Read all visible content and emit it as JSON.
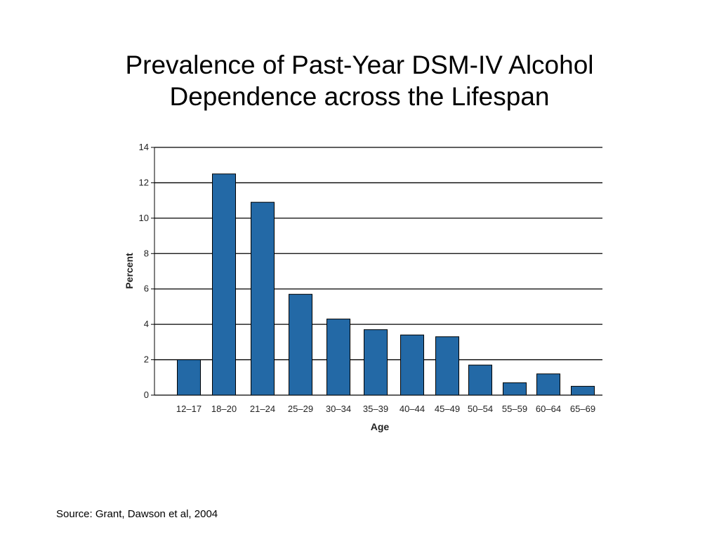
{
  "slide": {
    "title_line1": "Prevalence of Past-Year DSM-IV Alcohol",
    "title_line2": "Dependence across the Lifespan",
    "source": "Source: Grant, Dawson et al, 2004"
  },
  "chart_data": {
    "type": "bar",
    "title": "",
    "xlabel": "Age",
    "ylabel": "Percent",
    "categories": [
      "12–17",
      "18–20",
      "21–24",
      "25–29",
      "30–34",
      "35–39",
      "40–44",
      "45–49",
      "50–54",
      "55–59",
      "60–64",
      "65–69"
    ],
    "values": [
      2.0,
      12.5,
      10.9,
      5.7,
      4.3,
      3.7,
      3.4,
      3.3,
      1.7,
      0.7,
      1.2,
      0.5
    ],
    "ylim": [
      0,
      14
    ],
    "yticks": [
      0,
      2,
      4,
      6,
      8,
      10,
      12,
      14
    ],
    "grid": true,
    "bar_color": "#2369A6",
    "bar_edge_color": "#000000"
  }
}
